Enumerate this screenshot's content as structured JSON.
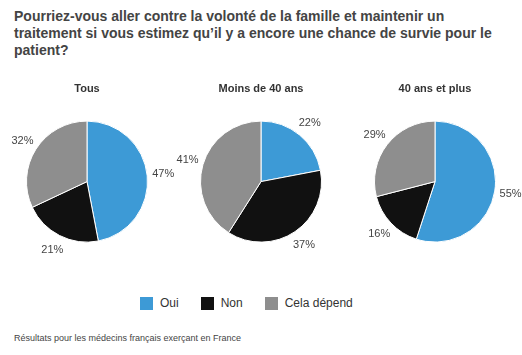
{
  "title": "Pourriez-vous aller contre la volonté de la famille et maintenir un traitement si vous estimez qu’il y a encore une chance de survie pour le patient?",
  "legend": "bottom",
  "footnote": "Résultats pour les médecins français exerçant en France",
  "chart_data": [
    {
      "type": "pie",
      "title": "Tous",
      "categories": [
        "Oui",
        "Non",
        "Cela dépend"
      ],
      "values": [
        47,
        21,
        32
      ],
      "value_labels": [
        "47%",
        "21%",
        "32%"
      ],
      "colors": [
        "#3d9ad6",
        "#111111",
        "#8e8e8e"
      ],
      "data_labels": true
    },
    {
      "type": "pie",
      "title": "Moins de 40 ans",
      "categories": [
        "Oui",
        "Non",
        "Cela dépend"
      ],
      "values": [
        22,
        37,
        41
      ],
      "value_labels": [
        "22%",
        "37%",
        "41%"
      ],
      "colors": [
        "#3d9ad6",
        "#111111",
        "#8e8e8e"
      ],
      "data_labels": true
    },
    {
      "type": "pie",
      "title": "40 ans et plus",
      "categories": [
        "Oui",
        "Non",
        "Cela dépend"
      ],
      "values": [
        55,
        16,
        29
      ],
      "value_labels": [
        "55%",
        "16%",
        "29%"
      ],
      "colors": [
        "#3d9ad6",
        "#111111",
        "#8e8e8e"
      ],
      "data_labels": true
    }
  ]
}
